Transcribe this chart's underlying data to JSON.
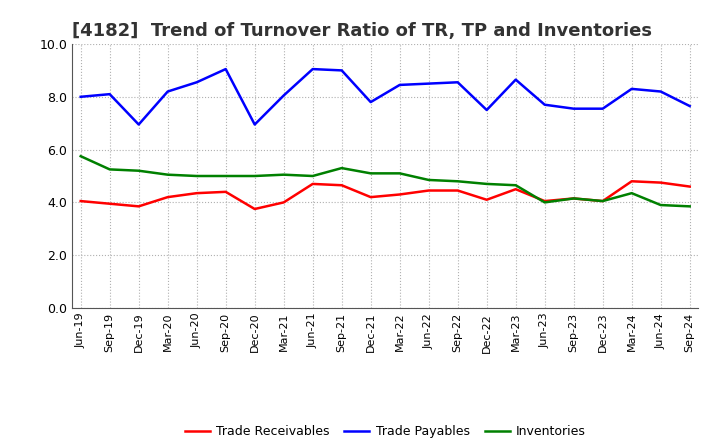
{
  "title": "[4182]  Trend of Turnover Ratio of TR, TP and Inventories",
  "labels": [
    "Jun-19",
    "Sep-19",
    "Dec-19",
    "Mar-20",
    "Jun-20",
    "Sep-20",
    "Dec-20",
    "Mar-21",
    "Jun-21",
    "Sep-21",
    "Dec-21",
    "Mar-22",
    "Jun-22",
    "Sep-22",
    "Dec-22",
    "Mar-23",
    "Jun-23",
    "Sep-23",
    "Dec-23",
    "Mar-24",
    "Jun-24",
    "Sep-24"
  ],
  "trade_receivables": [
    4.05,
    3.95,
    3.85,
    4.2,
    4.35,
    4.4,
    3.75,
    4.0,
    4.7,
    4.65,
    4.2,
    4.3,
    4.45,
    4.45,
    4.1,
    4.5,
    4.05,
    4.15,
    4.05,
    4.8,
    4.75,
    4.6
  ],
  "trade_payables": [
    8.0,
    8.1,
    6.95,
    8.2,
    8.55,
    9.05,
    6.95,
    8.05,
    9.05,
    9.0,
    7.8,
    8.45,
    8.5,
    8.55,
    7.5,
    8.65,
    7.7,
    7.55,
    7.55,
    8.3,
    8.2,
    7.65
  ],
  "inventories": [
    5.75,
    5.25,
    5.2,
    5.05,
    5.0,
    5.0,
    5.0,
    5.05,
    5.0,
    5.3,
    5.1,
    5.1,
    4.85,
    4.8,
    4.7,
    4.65,
    4.0,
    4.15,
    4.05,
    4.35,
    3.9,
    3.85
  ],
  "ylim": [
    0,
    10
  ],
  "yticks": [
    0.0,
    2.0,
    4.0,
    6.0,
    8.0,
    10.0
  ],
  "tr_color": "#ff0000",
  "tp_color": "#0000ff",
  "inv_color": "#008000",
  "bg_color": "#ffffff",
  "grid_color": "#b0b0b0",
  "legend_tr": "Trade Receivables",
  "legend_tp": "Trade Payables",
  "legend_inv": "Inventories",
  "title_fontsize": 13,
  "tick_fontsize": 8,
  "legend_fontsize": 9,
  "linewidth": 1.8
}
